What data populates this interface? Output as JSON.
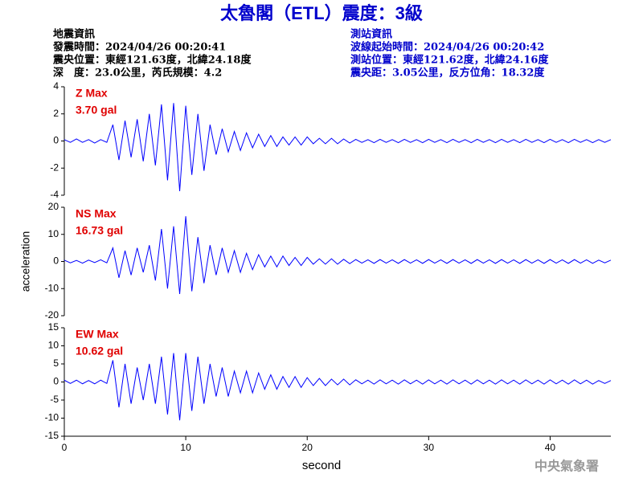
{
  "header": {
    "title": "太魯閣（ETL）震度：3級",
    "left": [
      "地震資訊",
      "發震時間：2024/04/26 00:20:41",
      "震央位置：東經121.63度，北緯24.18度",
      "深　度：23.0公里，芮氏規模：4.2"
    ],
    "right": [
      "測站資訊",
      "波線起始時間：2024/04/26 00:20:42",
      "測站位置：東經121.62度，北緯24.16度",
      "震央距：3.05公里，反方位角：18.32度"
    ]
  },
  "footer": "中央氣象署",
  "chart_data": [
    {
      "type": "line",
      "annotation": "Z Max",
      "annotation_value": "3.70 gal",
      "ylim": [
        -4,
        4
      ],
      "yticks": [
        -4,
        -2,
        0,
        2,
        4
      ],
      "xlim": [
        0,
        45
      ],
      "x": [
        0,
        0.5,
        1,
        1.5,
        2,
        2.5,
        3,
        3.5,
        4,
        4.5,
        5,
        5.5,
        6,
        6.5,
        7,
        7.5,
        8,
        8.5,
        9,
        9.5,
        10,
        10.5,
        11,
        11.5,
        12,
        12.5,
        13,
        13.5,
        14,
        14.5,
        15,
        15.5,
        16,
        16.5,
        17,
        17.5,
        18,
        18.5,
        19,
        19.5,
        20,
        20.5,
        21,
        21.5,
        22,
        22.5,
        23,
        23.5,
        24,
        24.5,
        25,
        25.5,
        26,
        26.5,
        27,
        27.5,
        28,
        28.5,
        29,
        29.5,
        30,
        30.5,
        31,
        31.5,
        32,
        32.5,
        33,
        33.5,
        34,
        34.5,
        35,
        35.5,
        36,
        36.5,
        37,
        37.5,
        38,
        38.5,
        39,
        39.5,
        40,
        40.5,
        41,
        41.5,
        42,
        42.5,
        43,
        43.5,
        44,
        44.5,
        45
      ],
      "series": [
        {
          "name": "Z",
          "color": "#0000ff",
          "values": [
            0.1,
            -0.1,
            0.15,
            -0.1,
            0.1,
            -0.15,
            0.1,
            -0.1,
            1.2,
            -1.4,
            1.5,
            -1.2,
            1.6,
            -1.5,
            2.0,
            -1.8,
            2.7,
            -2.9,
            2.8,
            -3.7,
            2.6,
            -2.5,
            2.0,
            -2.2,
            1.2,
            -1.0,
            0.9,
            -0.8,
            0.7,
            -0.7,
            0.6,
            -0.5,
            0.5,
            -0.4,
            0.4,
            -0.4,
            0.3,
            -0.3,
            0.3,
            -0.3,
            0.3,
            -0.2,
            0.2,
            -0.2,
            0.2,
            -0.2,
            0.15,
            -0.15,
            0.12,
            -0.1,
            0.1,
            -0.12,
            0.12,
            -0.1,
            0.1,
            -0.12,
            0.12,
            -0.1,
            0.1,
            -0.12,
            0.12,
            -0.1,
            0.1,
            -0.12,
            0.12,
            -0.1,
            0.1,
            -0.12,
            0.12,
            -0.1,
            0.1,
            -0.12,
            0.12,
            -0.1,
            0.1,
            -0.12,
            0.12,
            -0.1,
            0.1,
            -0.12,
            0.12,
            -0.1,
            0.1,
            -0.12,
            0.12,
            -0.1,
            0.1,
            -0.12,
            0.1,
            -0.1,
            0.1
          ]
        }
      ]
    },
    {
      "type": "line",
      "annotation": "NS Max",
      "annotation_value": "16.73 gal",
      "ylabel": "acceleration",
      "ylim": [
        -20,
        20
      ],
      "yticks": [
        -20,
        -10,
        0,
        10,
        20
      ],
      "xlim": [
        0,
        45
      ],
      "x": [
        0,
        0.5,
        1,
        1.5,
        2,
        2.5,
        3,
        3.5,
        4,
        4.5,
        5,
        5.5,
        6,
        6.5,
        7,
        7.5,
        8,
        8.5,
        9,
        9.5,
        10,
        10.5,
        11,
        11.5,
        12,
        12.5,
        13,
        13.5,
        14,
        14.5,
        15,
        15.5,
        16,
        16.5,
        17,
        17.5,
        18,
        18.5,
        19,
        19.5,
        20,
        20.5,
        21,
        21.5,
        22,
        22.5,
        23,
        23.5,
        24,
        24.5,
        25,
        25.5,
        26,
        26.5,
        27,
        27.5,
        28,
        28.5,
        29,
        29.5,
        30,
        30.5,
        31,
        31.5,
        32,
        32.5,
        33,
        33.5,
        34,
        34.5,
        35,
        35.5,
        36,
        36.5,
        37,
        37.5,
        38,
        38.5,
        39,
        39.5,
        40,
        40.5,
        41,
        41.5,
        42,
        42.5,
        43,
        43.5,
        44,
        44.5,
        45
      ],
      "series": [
        {
          "name": "NS",
          "color": "#0000ff",
          "values": [
            0.5,
            -0.5,
            0.4,
            -0.6,
            0.5,
            -0.4,
            0.6,
            -0.5,
            5,
            -6,
            4,
            -5,
            5,
            -4,
            6,
            -7,
            12,
            -10,
            13,
            -12,
            16.7,
            -11,
            9,
            -8,
            6,
            -5,
            5,
            -4,
            4,
            -4,
            3,
            -3,
            2.5,
            -2,
            2,
            -2,
            2,
            -1.5,
            1.5,
            -1.5,
            1.5,
            -1,
            1,
            -1,
            1,
            -1,
            0.8,
            -0.8,
            0.7,
            -0.6,
            0.6,
            -0.7,
            0.7,
            -0.6,
            0.6,
            -0.7,
            0.7,
            -0.6,
            0.6,
            -0.7,
            0.7,
            -0.6,
            0.6,
            -0.7,
            0.7,
            -0.6,
            0.6,
            -0.7,
            0.7,
            -0.6,
            0.6,
            -0.7,
            0.7,
            -0.6,
            0.6,
            -0.7,
            0.7,
            -0.6,
            0.6,
            -0.7,
            0.7,
            -0.6,
            0.6,
            -0.7,
            0.7,
            -0.6,
            0.6,
            -0.7,
            0.5,
            -0.5,
            0.5
          ]
        }
      ]
    },
    {
      "type": "line",
      "annotation": "EW Max",
      "annotation_value": "10.62 gal",
      "xlabel": "second",
      "ylim": [
        -15,
        15
      ],
      "yticks": [
        -15,
        -10,
        -5,
        0,
        5,
        10,
        15
      ],
      "xlim": [
        0,
        45
      ],
      "xticks": [
        0,
        10,
        20,
        30,
        40
      ],
      "x": [
        0,
        0.5,
        1,
        1.5,
        2,
        2.5,
        3,
        3.5,
        4,
        4.5,
        5,
        5.5,
        6,
        6.5,
        7,
        7.5,
        8,
        8.5,
        9,
        9.5,
        10,
        10.5,
        11,
        11.5,
        12,
        12.5,
        13,
        13.5,
        14,
        14.5,
        15,
        15.5,
        16,
        16.5,
        17,
        17.5,
        18,
        18.5,
        19,
        19.5,
        20,
        20.5,
        21,
        21.5,
        22,
        22.5,
        23,
        23.5,
        24,
        24.5,
        25,
        25.5,
        26,
        26.5,
        27,
        27.5,
        28,
        28.5,
        29,
        29.5,
        30,
        30.5,
        31,
        31.5,
        32,
        32.5,
        33,
        33.5,
        34,
        34.5,
        35,
        35.5,
        36,
        36.5,
        37,
        37.5,
        38,
        38.5,
        39,
        39.5,
        40,
        40.5,
        41,
        41.5,
        42,
        42.5,
        43,
        43.5,
        44,
        44.5,
        45
      ],
      "series": [
        {
          "name": "EW",
          "color": "#0000ff",
          "values": [
            0.5,
            -0.4,
            0.5,
            -0.5,
            0.4,
            -0.5,
            0.5,
            -0.4,
            6,
            -7,
            5,
            -6,
            4,
            -5,
            5,
            -6,
            7,
            -9,
            8,
            -10.6,
            8,
            -8,
            7,
            -6,
            5,
            -4,
            4,
            -4,
            3,
            -3,
            3,
            -3,
            2.5,
            -2,
            2,
            -2,
            1.5,
            -1.5,
            1.5,
            -1.5,
            1.2,
            -1,
            1,
            -1,
            0.8,
            -0.8,
            0.8,
            -0.8,
            0.6,
            -0.5,
            0.5,
            -0.6,
            0.6,
            -0.5,
            0.5,
            -0.6,
            0.6,
            -0.5,
            0.5,
            -0.6,
            0.6,
            -0.5,
            0.5,
            -0.6,
            0.6,
            -0.5,
            0.5,
            -0.6,
            0.6,
            -0.5,
            0.5,
            -0.6,
            0.6,
            -0.5,
            0.5,
            -0.6,
            0.6,
            -0.5,
            0.5,
            -0.6,
            0.6,
            -0.5,
            0.5,
            -0.6,
            0.6,
            -0.5,
            0.5,
            -0.6,
            0.4,
            -0.4,
            0.4
          ]
        }
      ]
    }
  ]
}
